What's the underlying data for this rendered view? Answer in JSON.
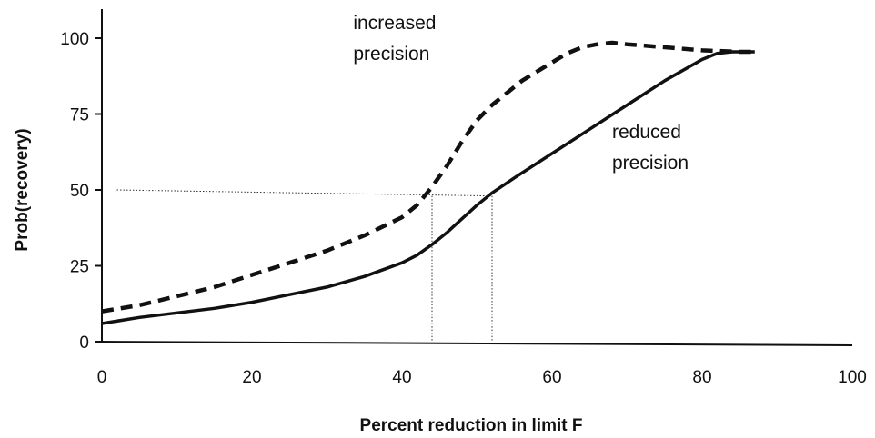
{
  "chart_data": {
    "type": "line",
    "title": "",
    "xlabel": "Percent reduction in limit F",
    "ylabel": "Prob(recovery)",
    "xlim": [
      0,
      100
    ],
    "ylim": [
      0,
      100
    ],
    "x_ticks": [
      0,
      20,
      40,
      60,
      80,
      100
    ],
    "y_ticks": [
      0,
      25,
      50,
      75,
      100
    ],
    "grid": false,
    "series": [
      {
        "key": "increased",
        "style": "dashed",
        "color": "#111111",
        "x": [
          0,
          5,
          10,
          15,
          20,
          25,
          30,
          35,
          40,
          42,
          44,
          46,
          48,
          50,
          52,
          54,
          56,
          58,
          60,
          62,
          64,
          66,
          68,
          70,
          75,
          80,
          85,
          87
        ],
        "y": [
          10,
          12,
          15,
          18,
          22,
          26,
          30,
          35,
          41,
          45,
          51,
          58,
          66,
          73,
          78,
          82,
          86,
          89,
          92,
          95,
          97,
          98,
          98.5,
          98,
          97,
          96,
          95.5,
          95.5
        ]
      },
      {
        "key": "reduced",
        "style": "solid",
        "color": "#111111",
        "x": [
          0,
          5,
          10,
          15,
          20,
          25,
          30,
          35,
          40,
          42,
          44,
          46,
          48,
          50,
          52,
          55,
          60,
          65,
          70,
          75,
          80,
          82,
          84,
          86,
          87
        ],
        "y": [
          6,
          8,
          9.5,
          11,
          13,
          15.5,
          18,
          21.5,
          26,
          28.5,
          32,
          36,
          40.5,
          45,
          49,
          54,
          62,
          70,
          78,
          86,
          93,
          95,
          95.5,
          95.5,
          95.5
        ]
      }
    ],
    "reference_lines": [
      {
        "x1": 2,
        "y1": 50,
        "x2": 52,
        "y2": 48
      },
      {
        "x1": 44,
        "y1": 48,
        "x2": 44,
        "y2": 0
      },
      {
        "x1": 52,
        "y1": 48,
        "x2": 52,
        "y2": 0
      }
    ],
    "annotations": [
      {
        "key": "increased",
        "lines": [
          "increased",
          "precision"
        ],
        "x": 33.5,
        "y": 103
      },
      {
        "key": "reduced",
        "lines": [
          "reduced",
          "precision"
        ],
        "x": 68,
        "y": 67
      }
    ]
  }
}
